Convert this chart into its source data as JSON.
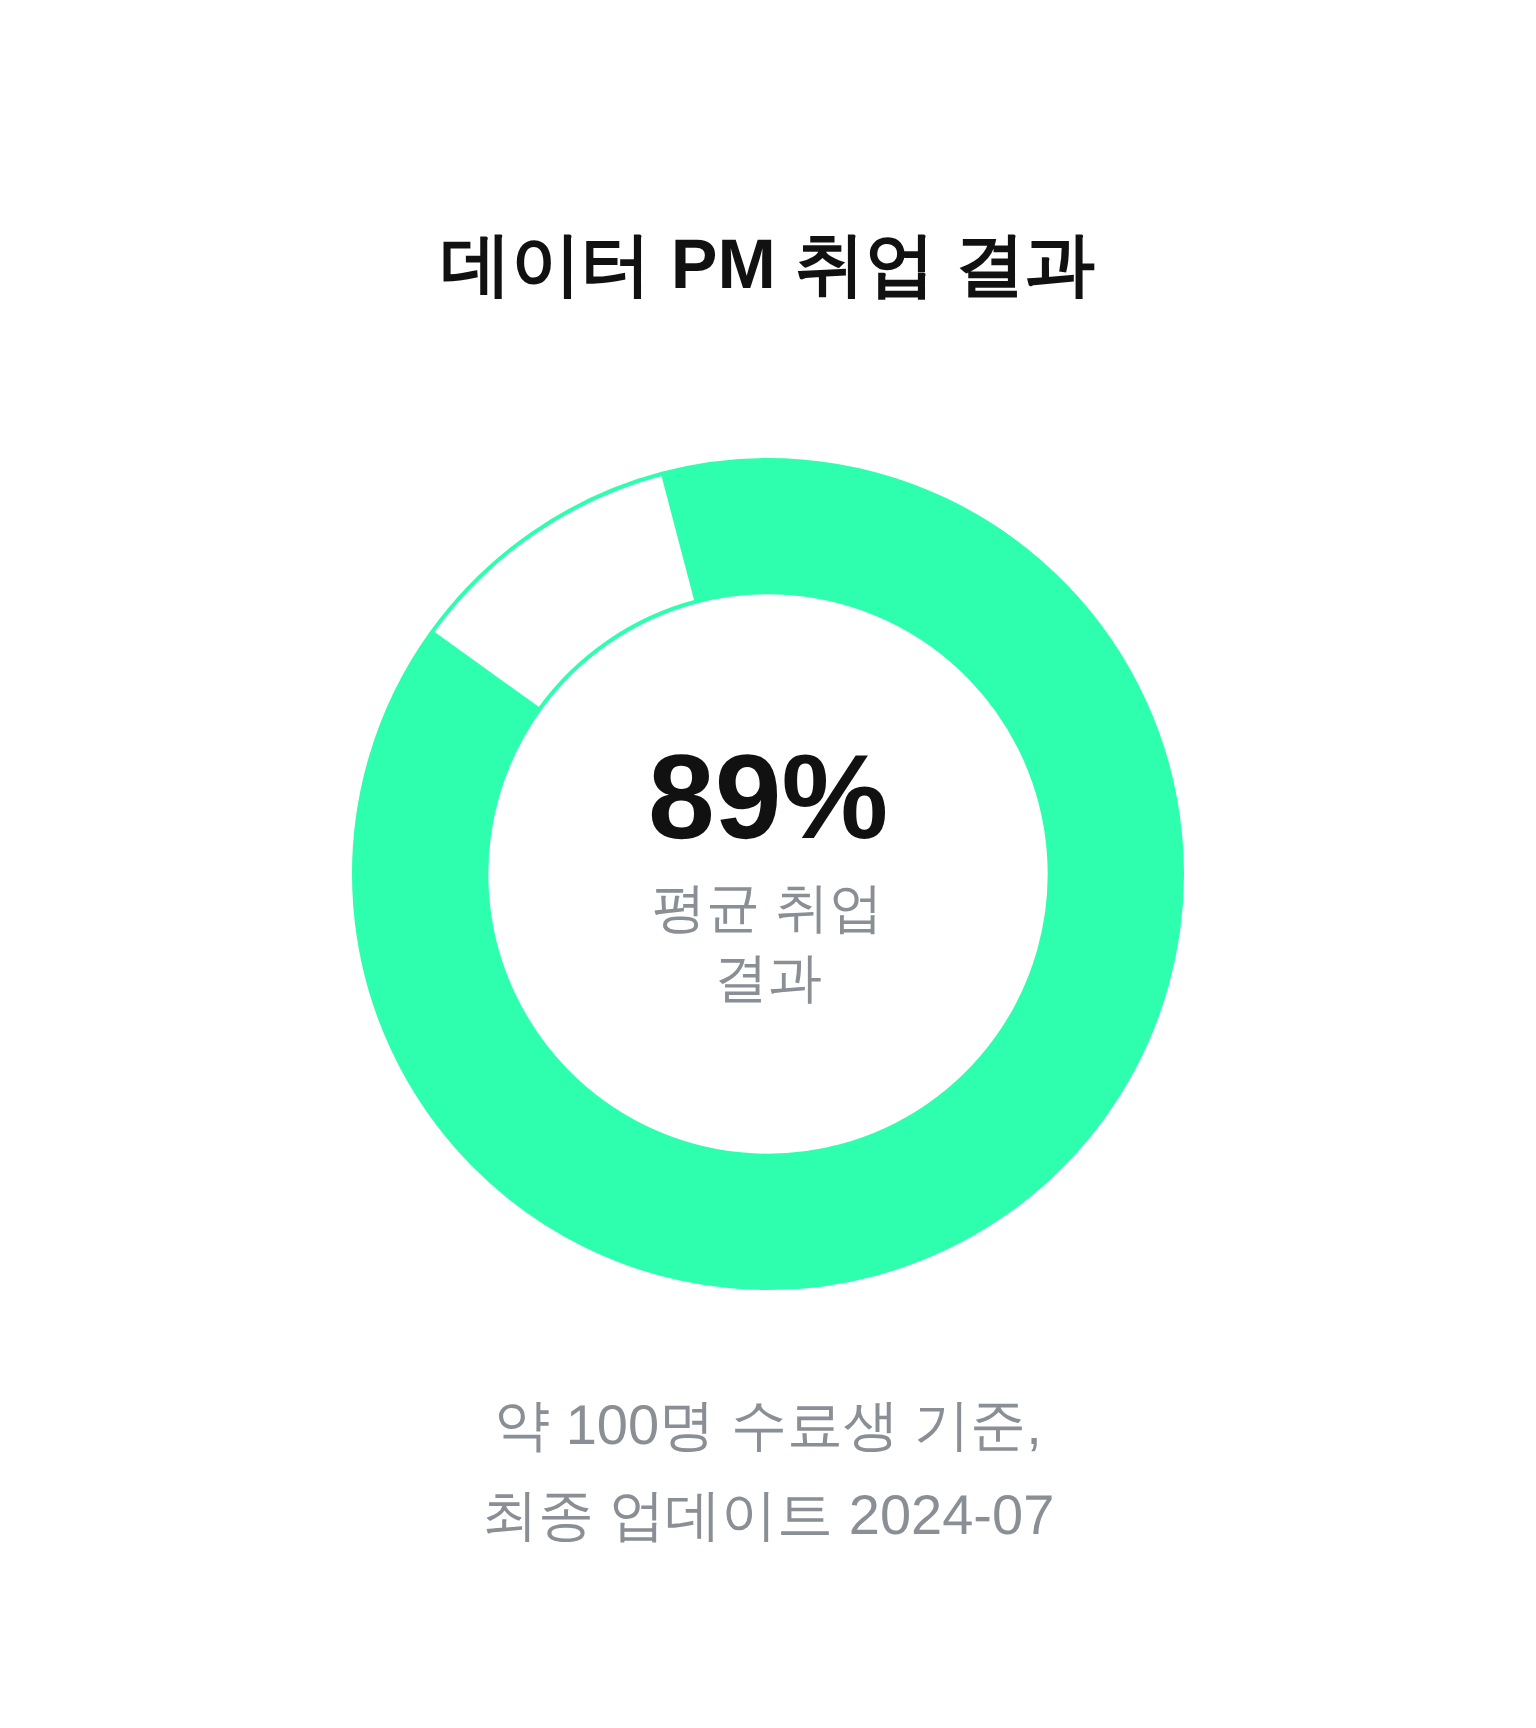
{
  "chart_data": {
    "type": "donut",
    "title": "데이터 PM 취업 결과",
    "categories": [
      null,
      null
    ],
    "values": [
      89,
      11
    ],
    "colors": [
      "#2effae",
      "#ffffff"
    ],
    "value_labels": [
      "89%",
      null
    ],
    "annotations": [
      "평균 취업 결과",
      "약 100명 수료생 기준, 최종 업데이트 2024-07"
    ]
  }
}
